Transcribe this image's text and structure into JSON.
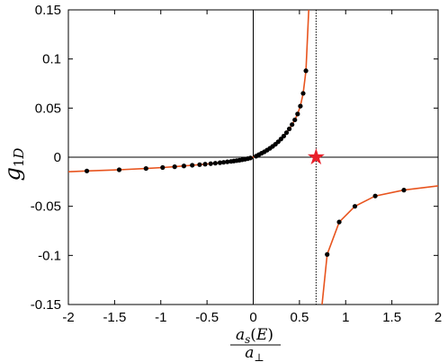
{
  "chart_data": {
    "type": "scatter",
    "title": "",
    "xlabel": {
      "numerator": "a_s(E)",
      "denominator": "a_⊥"
    },
    "ylabel": "g_1D",
    "xlim": [
      -2,
      2
    ],
    "ylim": [
      -0.15,
      0.15
    ],
    "x_ticks": [
      "-2",
      "-1.5",
      "-1",
      "-0.5",
      "0",
      "0.5",
      "1",
      "1.5",
      "2"
    ],
    "y_ticks": [
      "0.15",
      "0.1",
      "0.05",
      "0",
      "-0.05",
      "-0.1",
      "-0.15"
    ],
    "grid": false,
    "legend": "none",
    "resonance_x": 0.68,
    "star_point": {
      "x": 0.68,
      "y": 0
    },
    "curve_color": "#e8541e",
    "point_color": "#000000",
    "star_color": "#e8202a",
    "series": [
      {
        "kind": "points",
        "points": [
          [
            -1.8,
            -0.014
          ],
          [
            -1.45,
            -0.0128
          ],
          [
            -1.16,
            -0.0115
          ],
          [
            -0.98,
            -0.0105
          ],
          [
            -0.85,
            -0.0097
          ],
          [
            -0.75,
            -0.0089
          ],
          [
            -0.66,
            -0.0082
          ],
          [
            -0.58,
            -0.0076
          ],
          [
            -0.52,
            -0.0071
          ],
          [
            -0.46,
            -0.0066
          ],
          [
            -0.41,
            -0.0061
          ],
          [
            -0.36,
            -0.0056
          ],
          [
            -0.32,
            -0.0052
          ],
          [
            -0.28,
            -0.0047
          ],
          [
            -0.24,
            -0.0043
          ],
          [
            -0.21,
            -0.0039
          ],
          [
            -0.18,
            -0.0035
          ],
          [
            -0.15,
            -0.0031
          ],
          [
            -0.12,
            -0.0026
          ],
          [
            -0.09,
            -0.0021
          ],
          [
            -0.06,
            -0.0015
          ],
          [
            -0.03,
            -0.0008
          ],
          [
            0.03,
            0.001
          ],
          [
            0.06,
            0.0025
          ],
          [
            0.09,
            0.004
          ],
          [
            0.12,
            0.0055
          ],
          [
            0.15,
            0.0072
          ],
          [
            0.18,
            0.009
          ],
          [
            0.21,
            0.011
          ],
          [
            0.24,
            0.0132
          ],
          [
            0.27,
            0.0157
          ],
          [
            0.3,
            0.0185
          ],
          [
            0.33,
            0.0215
          ],
          [
            0.36,
            0.025
          ],
          [
            0.39,
            0.0288
          ],
          [
            0.42,
            0.0332
          ],
          [
            0.45,
            0.038
          ],
          [
            0.48,
            0.044
          ],
          [
            0.51,
            0.052
          ],
          [
            0.54,
            0.065
          ],
          [
            0.57,
            0.088
          ],
          [
            0.8,
            -0.099
          ],
          [
            0.93,
            -0.066
          ],
          [
            1.1,
            -0.05
          ],
          [
            1.32,
            -0.0395
          ],
          [
            1.63,
            -0.0335
          ]
        ]
      }
    ]
  }
}
